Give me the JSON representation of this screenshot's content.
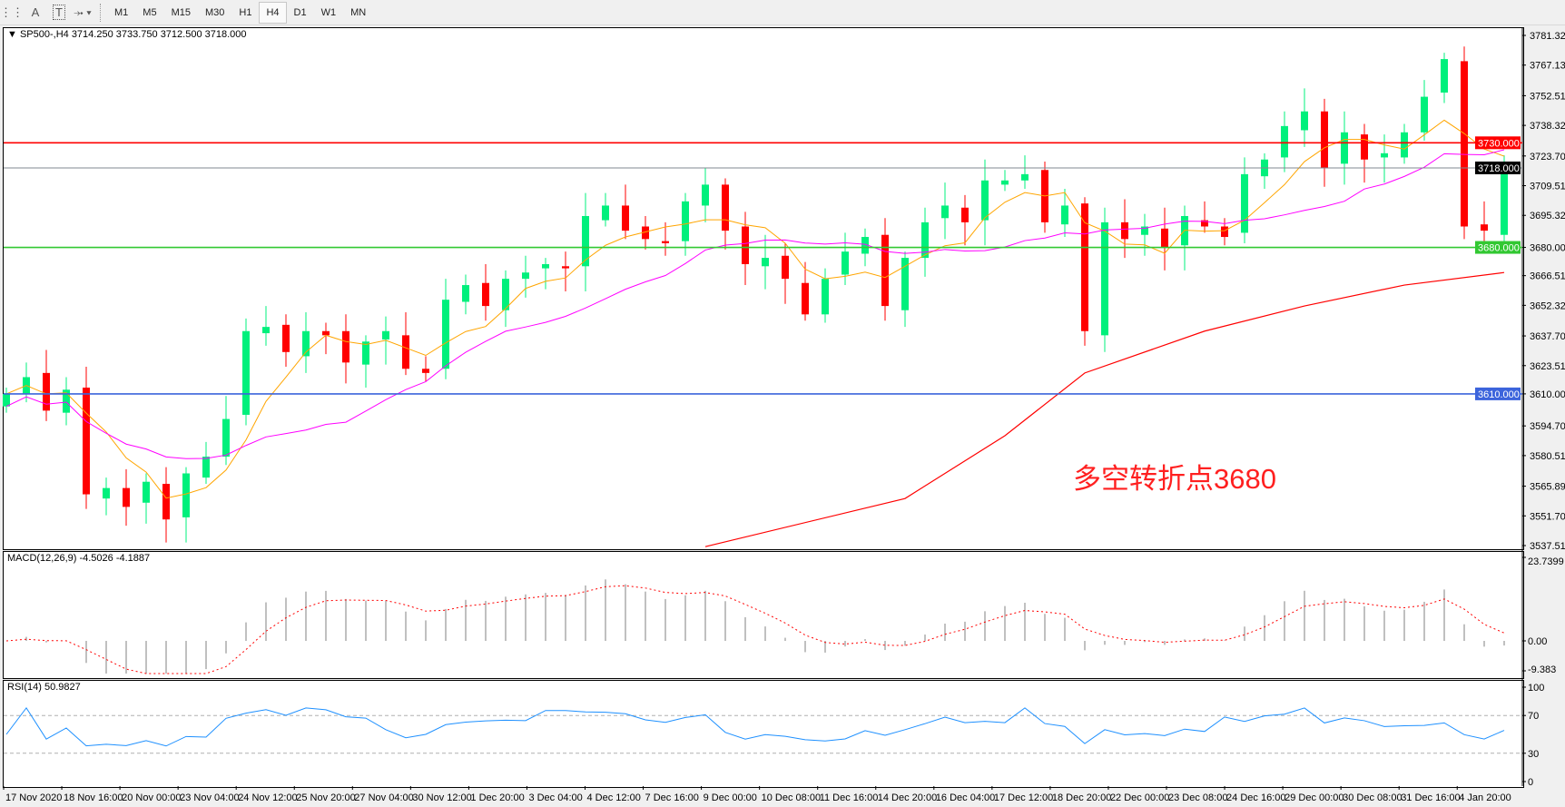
{
  "toolbar": {
    "icons": [
      "grid-lines-icon",
      "text-icon",
      "text-label-icon",
      "arrows-icon"
    ],
    "timeframes": [
      "M1",
      "M5",
      "M15",
      "M30",
      "H1",
      "H4",
      "D1",
      "W1",
      "MN"
    ],
    "active_timeframe": "H4"
  },
  "chart": {
    "header": "SP500-,H4  3714.250 3733.750 3712.500 3718.000",
    "symbol": "SP500-",
    "timeframe": "H4",
    "ohlc": {
      "open": 3714.25,
      "high": 3733.75,
      "low": 3712.5,
      "close": 3718.0
    },
    "annotation": "多空转折点3680",
    "annotation_color": "#ff2020",
    "price_axis": [
      "3781.320",
      "3767.130",
      "3752.510",
      "3738.320",
      "3723.700",
      "3709.510",
      "3695.320",
      "3680.000",
      "3666.510",
      "3652.320",
      "3637.700",
      "3623.510",
      "3610.000",
      "3594.700",
      "3580.510",
      "3565.890",
      "3551.700",
      "3537.510"
    ],
    "price_range": [
      3537.51,
      3781.32
    ],
    "levels": [
      {
        "price": 3730,
        "label": "3730.000",
        "color": "#ff0000"
      },
      {
        "price": 3718,
        "label": "3718.000",
        "color": "#808890"
      },
      {
        "price": 3680,
        "label": "3680.000",
        "color": "#32c832"
      },
      {
        "price": 3610,
        "label": "3610.000",
        "color": "#3c64dc"
      }
    ],
    "bull_color": "#00f07c",
    "bear_color": "#ff0000",
    "closes": [
      3610,
      3618,
      3602,
      3612,
      3562,
      3565,
      3556,
      3568,
      3550,
      3572,
      3580,
      3598,
      3640,
      3642,
      3630,
      3640,
      3638,
      3625,
      3635,
      3640,
      3622,
      3620,
      3655,
      3662,
      3652,
      3665,
      3668,
      3672,
      3670,
      3695,
      3700,
      3688,
      3684,
      3682,
      3702,
      3710,
      3688,
      3672,
      3675,
      3665,
      3648,
      3665,
      3678,
      3685,
      3652,
      3675,
      3692,
      3700,
      3692,
      3712,
      3712,
      3715,
      3692,
      3700,
      3640,
      3692,
      3684,
      3690,
      3680,
      3695,
      3690,
      3685,
      3715,
      3722,
      3738,
      3745,
      3718,
      3735,
      3722,
      3725,
      3735,
      3752,
      3770,
      3690,
      3688,
      3718
    ],
    "ma_long": [
      [
        35,
        3537
      ],
      [
        45,
        3560
      ],
      [
        50,
        3590
      ],
      [
        54,
        3620
      ],
      [
        60,
        3640
      ],
      [
        65,
        3652
      ],
      [
        70,
        3662
      ],
      [
        75,
        3668
      ]
    ]
  },
  "macd": {
    "label": "MACD(12,26,9) -4.5026 -4.1887",
    "axis": {
      "max": "23.7399",
      "zero": "0.00",
      "min": "-9.383"
    },
    "range": [
      -9.383,
      23.7399
    ]
  },
  "rsi": {
    "label": "RSI(14) 50.9827",
    "axis": [
      "100",
      "70",
      "30",
      "0"
    ],
    "line_color": "#1e90ff"
  },
  "time_axis": [
    "17 Nov 2020",
    "18 Nov 16:00",
    "20 Nov 00:00",
    "23 Nov 04:00",
    "24 Nov 12:00",
    "25 Nov 20:00",
    "27 Nov 04:00",
    "30 Nov 12:00",
    "1 Dec 20:00",
    "3 Dec 04:00",
    "4 Dec 12:00",
    "7 Dec 16:00",
    "9 Dec 00:00",
    "10 Dec 08:00",
    "11 Dec 16:00",
    "14 Dec 20:00",
    "16 Dec 04:00",
    "17 Dec 12:00",
    "18 Dec 20:00",
    "22 Dec 00:00",
    "23 Dec 08:00",
    "24 Dec 16:00",
    "29 Dec 00:00",
    "30 Dec 08:00",
    "31 Dec 16:00",
    "4 Jan 20:00"
  ]
}
